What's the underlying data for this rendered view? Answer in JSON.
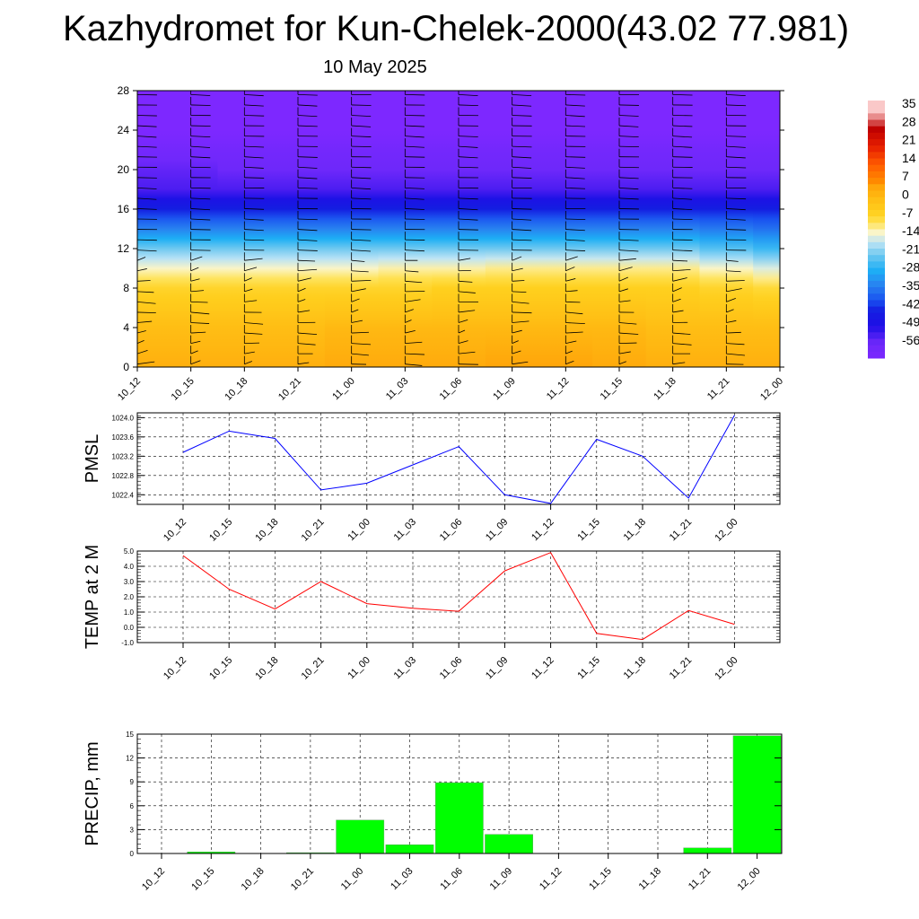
{
  "header": {
    "title": "Kazhydromet for Kun-Chelek-2000(43.02 77.981)",
    "date": "10 May 2025"
  },
  "chart_data": [
    {
      "type": "heatmap",
      "name": "temperature-wind-cross-section",
      "x": [
        "10_12",
        "10_15",
        "10_18",
        "10_21",
        "11_00",
        "11_03",
        "11_06",
        "11_09",
        "11_12",
        "11_15",
        "11_18",
        "11_21",
        "12_00"
      ],
      "y_ticks": [
        0,
        4,
        8,
        12,
        16,
        20,
        24,
        28
      ],
      "ylim": [
        0,
        28
      ],
      "colorbar": {
        "labels": [
          "35",
          "28",
          "21",
          "14",
          "7",
          "0",
          "-7",
          "-14",
          "-21",
          "-28",
          "-35",
          "-42",
          "-49",
          "-56"
        ],
        "values": [
          35,
          28,
          21,
          14,
          7,
          0,
          -7,
          -14,
          -21,
          -28,
          -35,
          -42,
          -49,
          -56
        ]
      },
      "layers": [
        {
          "level": 0,
          "temps": [
            3,
            3,
            3,
            3,
            4,
            4,
            4,
            5,
            5,
            4,
            3,
            3,
            3
          ]
        },
        {
          "level": 4,
          "temps": [
            0,
            0,
            0,
            0,
            1,
            1,
            1,
            1,
            1,
            1,
            0,
            0,
            0
          ]
        },
        {
          "level": 8,
          "temps": [
            -6,
            -6,
            -6,
            -6,
            -6,
            -6,
            -5,
            -5,
            -5,
            -5,
            -5,
            -6,
            -7
          ]
        },
        {
          "level": 10,
          "temps": [
            -13,
            -13,
            -13,
            -13,
            -13,
            -12,
            -12,
            -11,
            -11,
            -11,
            -11,
            -13,
            -15
          ]
        },
        {
          "level": 12,
          "temps": [
            -22,
            -22,
            -22,
            -22,
            -22,
            -22,
            -22,
            -22,
            -22,
            -22,
            -22,
            -24,
            -26
          ]
        },
        {
          "level": 14,
          "temps": [
            -34,
            -34,
            -34,
            -34,
            -34,
            -34,
            -34,
            -34,
            -34,
            -34,
            -34,
            -35,
            -36
          ]
        },
        {
          "level": 16,
          "temps": [
            -44,
            -44,
            -44,
            -44,
            -44,
            -44,
            -44,
            -44,
            -44,
            -44,
            -44,
            -44,
            -44
          ]
        },
        {
          "level": 18,
          "temps": [
            -54,
            -54,
            -54,
            -54,
            -54,
            -54,
            -54,
            -54,
            -54,
            -54,
            -54,
            -54,
            -54
          ]
        },
        {
          "level": 20,
          "temps": [
            -56,
            -56,
            -57,
            -57,
            -57,
            -57,
            -57,
            -57,
            -57,
            -57,
            -57,
            -57,
            -57
          ]
        },
        {
          "level": 22,
          "temps": [
            -60,
            -60,
            -60,
            -60,
            -60,
            -60,
            -60,
            -60,
            -60,
            -60,
            -60,
            -60,
            -60
          ]
        },
        {
          "level": 24,
          "temps": [
            -64,
            -64,
            -64,
            -64,
            -64,
            -64,
            -64,
            -64,
            -64,
            -64,
            -64,
            -64,
            -64
          ]
        },
        {
          "level": 28,
          "temps": [
            -64,
            -64,
            -64,
            -64,
            -64,
            -64,
            -64,
            -64,
            -64,
            -64,
            -64,
            -64,
            -64
          ]
        }
      ],
      "wind_barbs": true
    },
    {
      "type": "line",
      "ylabel": "PMSL",
      "categories": [
        "10_12",
        "10_15",
        "10_18",
        "10_21",
        "11_00",
        "11_03",
        "11_06",
        "11_09",
        "11_12",
        "11_15",
        "11_18",
        "11_21",
        "12_00"
      ],
      "values": [
        1023.28,
        1023.72,
        1023.57,
        1022.5,
        1022.64,
        1023.02,
        1023.4,
        1022.4,
        1022.22,
        1023.55,
        1023.2,
        1022.33,
        1024.05
      ],
      "ylim": [
        1022.2,
        1024.1
      ],
      "y_ticks": [
        1022.4,
        1022.8,
        1023.2,
        1023.6,
        1024.0
      ],
      "y_tick_labels": [
        "1022.4",
        "1022.8",
        "1023.2",
        "1023.6",
        "1024.0"
      ],
      "color": "#0000ff",
      "grid": true
    },
    {
      "type": "line",
      "ylabel": "TEMP at 2 M",
      "categories": [
        "10_12",
        "10_15",
        "10_18",
        "10_21",
        "11_00",
        "11_03",
        "11_06",
        "11_09",
        "11_12",
        "11_15",
        "11_18",
        "11_21",
        "12_00"
      ],
      "values": [
        4.7,
        2.5,
        1.2,
        3.0,
        1.55,
        1.25,
        1.05,
        3.7,
        4.9,
        -0.4,
        -0.8,
        1.1,
        0.2
      ],
      "ylim": [
        -1.0,
        5.0
      ],
      "y_ticks": [
        -1.0,
        0.0,
        1.0,
        2.0,
        3.0,
        4.0,
        5.0
      ],
      "y_tick_labels": [
        "-1.0",
        "0.0",
        "1.0",
        "2.0",
        "3.0",
        "4.0",
        "5.0"
      ],
      "color": "#ff0000",
      "grid": true
    },
    {
      "type": "bar",
      "ylabel": "PRECIP, mm",
      "categories": [
        "10_12",
        "10_15",
        "10_18",
        "10_21",
        "11_00",
        "11_03",
        "11_06",
        "11_09",
        "11_12",
        "11_15",
        "11_18",
        "11_21",
        "12_00"
      ],
      "values": [
        0,
        0.2,
        0,
        0.1,
        4.2,
        1.1,
        8.9,
        2.4,
        0,
        0,
        0,
        0.7,
        14.8
      ],
      "ylim": [
        0,
        15
      ],
      "y_ticks": [
        0,
        3,
        6,
        9,
        12,
        15
      ],
      "y_tick_labels": [
        "0",
        "3",
        "6",
        "9",
        "12",
        "15"
      ],
      "color": "#00ff00",
      "grid": true
    }
  ]
}
